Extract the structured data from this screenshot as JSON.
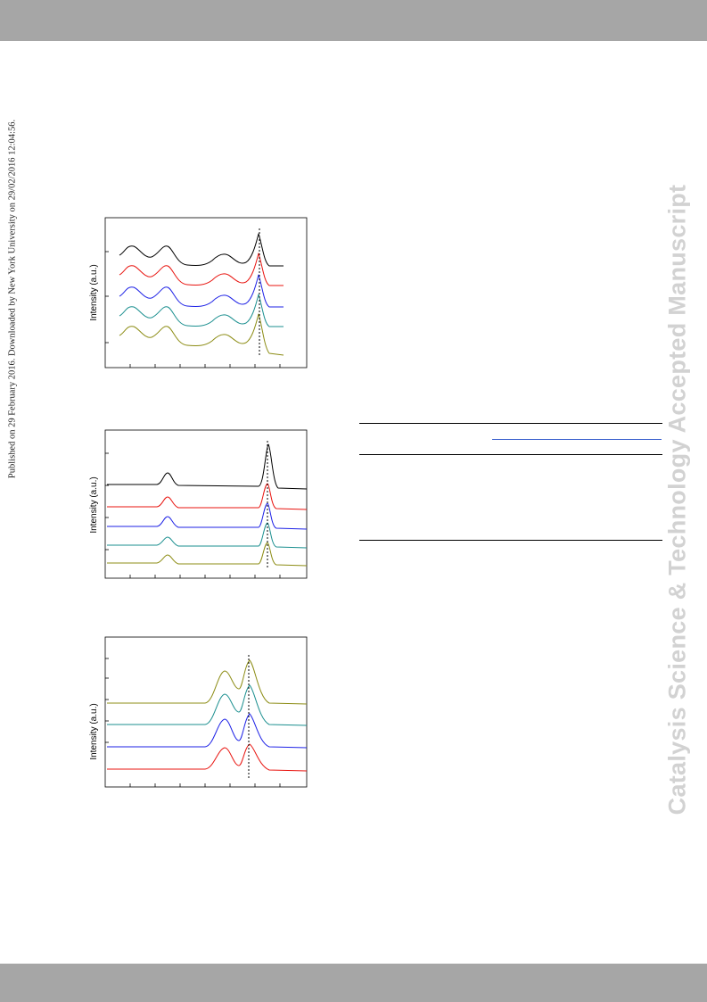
{
  "header_band_color": "#a6a6a6",
  "footer_band_color": "#a6a6a6",
  "side_notice": "Published on 29 February 2016. Downloaded by New York University on 29/02/2016 12:04:56.",
  "watermark": "Catalysis Science & Technology Accepted Manuscript",
  "watermark_color": "#d2d2d2",
  "figures": [
    {
      "ylabel": "Intensity (a.u.)",
      "series_colors": [
        "#000000",
        "#e8140f",
        "#1e22e6",
        "#1b8f8f",
        "#8c8c14"
      ]
    },
    {
      "ylabel": "Intensity (a.u.)",
      "series_colors": [
        "#000000",
        "#e8140f",
        "#1e22e6",
        "#1b8f8f",
        "#8c8c14"
      ]
    },
    {
      "ylabel": "Intensity (a.u.)",
      "series_colors": [
        "#8c8c14",
        "#1b8f8f",
        "#1e22e6",
        "#e8140f"
      ]
    }
  ],
  "table_rule_color": "#000000",
  "table_subrule_color": "#3a5fcd"
}
